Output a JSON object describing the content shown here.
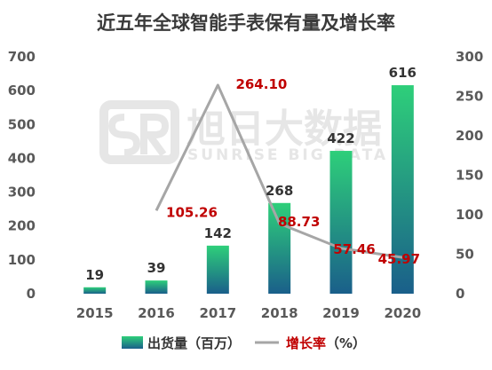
{
  "chart_data": {
    "type": "bar",
    "title": "近五年全球智能手表保有量及增长率",
    "categories": [
      "2015",
      "2016",
      "2017",
      "2018",
      "2019",
      "2020"
    ],
    "series": [
      {
        "name": "出货量（百万）",
        "type": "bar",
        "axis": "left",
        "values": [
          19,
          39,
          142,
          268,
          422,
          616
        ],
        "labels": [
          "19",
          "39",
          "142",
          "268",
          "422",
          "616"
        ]
      },
      {
        "name": "增长率（%）",
        "type": "line",
        "axis": "right",
        "values": [
          null,
          105.26,
          264.1,
          88.73,
          57.46,
          45.97
        ],
        "labels": [
          "",
          "105.26",
          "264.10",
          "88.73",
          "57.46",
          "45.97"
        ]
      }
    ],
    "y_left": {
      "range": [
        0,
        700
      ],
      "ticks": [
        "0",
        "100",
        "200",
        "300",
        "400",
        "500",
        "600",
        "700"
      ]
    },
    "y_right": {
      "range": [
        0,
        300
      ],
      "ticks": [
        "0",
        "50",
        "100",
        "150",
        "200",
        "250",
        "300"
      ]
    },
    "grid": false,
    "legend": {
      "position": "bottom",
      "bar_name": "出货量（百万）",
      "line_name_main": "增长率",
      "line_name_unit": "（%）"
    },
    "colors": {
      "bar_top": "#2ecf7a",
      "bar_bottom": "#1a5f8a",
      "line": "#a6a6a6",
      "rate_label": "#c00000"
    }
  },
  "watermark": {
    "text": "旭日大数据",
    "sub": "SUNRISE BIG DATA",
    "logo": "SR-logo-icon"
  }
}
